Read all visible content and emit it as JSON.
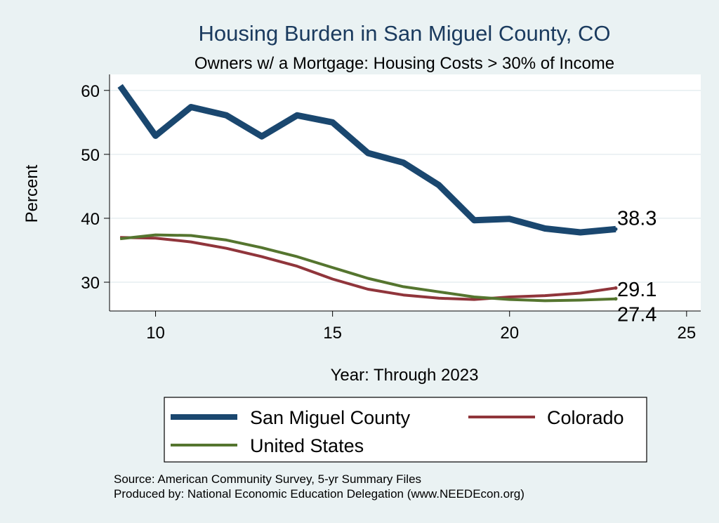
{
  "chart_data": {
    "type": "line",
    "title": "Housing Burden in San Miguel County, CO",
    "subtitle": "Owners w/ a Mortgage: Housing Costs > 30% of Income",
    "xlabel": "Year: Through 2023",
    "ylabel": "Percent",
    "xlim": [
      8.7,
      25.4
    ],
    "ylim": [
      25.5,
      62.5
    ],
    "xticks": [
      10,
      15,
      20,
      25
    ],
    "yticks": [
      30,
      40,
      50,
      60
    ],
    "x": [
      9,
      10,
      11,
      12,
      13,
      14,
      15,
      16,
      17,
      18,
      19,
      20,
      21,
      22,
      23
    ],
    "series": [
      {
        "name": "San Miguel County",
        "color": "#1a476f",
        "values": [
          60.7,
          52.9,
          57.4,
          56.1,
          52.8,
          56.1,
          55.0,
          50.2,
          48.7,
          45.2,
          39.7,
          39.9,
          38.4,
          37.8,
          38.3
        ],
        "end_label": "38.3"
      },
      {
        "name": "Colorado",
        "color": "#90353b",
        "values": [
          37.0,
          36.9,
          36.3,
          35.3,
          34.0,
          32.5,
          30.5,
          28.9,
          28.0,
          27.5,
          27.3,
          27.7,
          27.9,
          28.3,
          29.1
        ],
        "end_label": "29.1"
      },
      {
        "name": "United States",
        "color": "#55752f",
        "values": [
          36.8,
          37.4,
          37.3,
          36.6,
          35.4,
          34.0,
          32.3,
          30.6,
          29.3,
          28.5,
          27.7,
          27.3,
          27.1,
          27.2,
          27.4
        ],
        "end_label": "27.4"
      }
    ]
  },
  "notes": {
    "source": "Source: American Community Survey, 5-yr Summary Files",
    "producer": "Produced by: National Economic Education Delegation (www.NEEDEcon.org)"
  }
}
